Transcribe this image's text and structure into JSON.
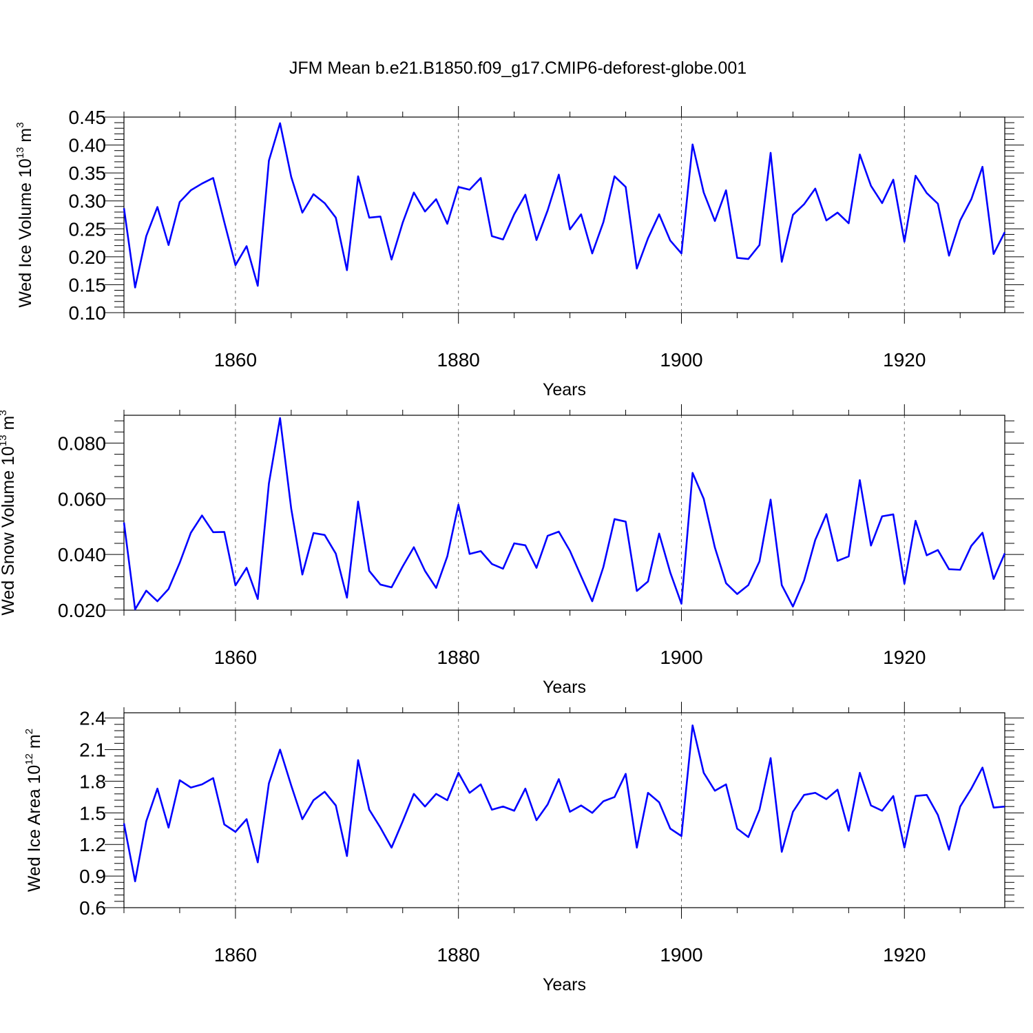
{
  "title": "JFM Mean b.e21.B1850.f09_g17.CMIP6-deforest-globe.001",
  "colors": {
    "line": "#0000ff",
    "axis": "#000000",
    "grid": "#666666"
  },
  "chart_data": [
    {
      "type": "line",
      "ylabel_main": "Wed Ice Volume 10",
      "ylabel_exp": "13",
      "ylabel_unit": " m",
      "ylabel_unit_exp": "3",
      "xlabel": "Years",
      "xlim": [
        1850,
        1929
      ],
      "ylim": [
        0.1,
        0.45
      ],
      "yticks": [
        0.1,
        0.15,
        0.2,
        0.25,
        0.3,
        0.35,
        0.4,
        0.45
      ],
      "ytick_labels": [
        "0.10",
        "0.15",
        "0.20",
        "0.25",
        "0.30",
        "0.35",
        "0.40",
        "0.45"
      ],
      "xticks": [
        1860,
        1880,
        1900,
        1920
      ],
      "xtick_labels": [
        "1860",
        "1880",
        "1900",
        "1920"
      ],
      "series": [
        {
          "name": "Wed Ice Volume",
          "x_start": 1850,
          "values": [
            0.287,
            0.145,
            0.237,
            0.289,
            0.221,
            0.298,
            0.319,
            0.331,
            0.341,
            0.262,
            0.185,
            0.219,
            0.148,
            0.372,
            0.439,
            0.343,
            0.279,
            0.312,
            0.296,
            0.27,
            0.176,
            0.344,
            0.27,
            0.272,
            0.195,
            0.261,
            0.315,
            0.281,
            0.303,
            0.259,
            0.325,
            0.32,
            0.341,
            0.237,
            0.231,
            0.276,
            0.311,
            0.23,
            0.283,
            0.347,
            0.249,
            0.276,
            0.206,
            0.262,
            0.344,
            0.325,
            0.179,
            0.233,
            0.276,
            0.229,
            0.206,
            0.401,
            0.315,
            0.264,
            0.319,
            0.198,
            0.196,
            0.221,
            0.386,
            0.191,
            0.275,
            0.294,
            0.322,
            0.265,
            0.279,
            0.26,
            0.383,
            0.327,
            0.296,
            0.338,
            0.227,
            0.345,
            0.314,
            0.295,
            0.202,
            0.265,
            0.303,
            0.361,
            0.205,
            0.244
          ]
        }
      ]
    },
    {
      "type": "line",
      "ylabel_main": "Wed Snow Volume 10",
      "ylabel_exp": "13",
      "ylabel_unit": " m",
      "ylabel_unit_exp": "3",
      "xlabel": "Years",
      "xlim": [
        1850,
        1929
      ],
      "ylim": [
        0.02,
        0.09
      ],
      "yticks": [
        0.02,
        0.04,
        0.06,
        0.08
      ],
      "ytick_labels": [
        "0.020",
        "0.040",
        "0.060",
        "0.080"
      ],
      "xticks": [
        1860,
        1880,
        1900,
        1920
      ],
      "xtick_labels": [
        "1860",
        "1880",
        "1900",
        "1920"
      ],
      "series": [
        {
          "name": "Wed Snow Volume",
          "x_start": 1850,
          "values": [
            0.0515,
            0.0203,
            0.027,
            0.0232,
            0.0276,
            0.037,
            0.0478,
            0.054,
            0.048,
            0.0481,
            0.0289,
            0.0352,
            0.024,
            0.0655,
            0.089,
            0.0565,
            0.0328,
            0.0477,
            0.047,
            0.0403,
            0.0245,
            0.059,
            0.0341,
            0.0292,
            0.0282,
            0.0357,
            0.0426,
            0.0341,
            0.028,
            0.0393,
            0.0579,
            0.0402,
            0.0412,
            0.0366,
            0.0349,
            0.044,
            0.0433,
            0.0352,
            0.0467,
            0.0482,
            0.0413,
            0.0322,
            0.0232,
            0.0355,
            0.0527,
            0.0518,
            0.0269,
            0.0303,
            0.0475,
            0.0335,
            0.0223,
            0.0693,
            0.06,
            0.0425,
            0.0297,
            0.0258,
            0.029,
            0.0375,
            0.0597,
            0.029,
            0.0213,
            0.0307,
            0.0452,
            0.0545,
            0.0377,
            0.0393,
            0.0667,
            0.0432,
            0.0537,
            0.0544,
            0.0295,
            0.0521,
            0.0397,
            0.0416,
            0.0347,
            0.0345,
            0.0431,
            0.0478,
            0.0312,
            0.0404
          ]
        }
      ]
    },
    {
      "type": "line",
      "ylabel_main": "Wed Ice Area 10",
      "ylabel_exp": "12",
      "ylabel_unit": " m",
      "ylabel_unit_exp": "2",
      "xlabel": "Years",
      "xlim": [
        1850,
        1929
      ],
      "ylim": [
        0.6,
        2.45
      ],
      "yticks": [
        0.6,
        0.9,
        1.2,
        1.5,
        1.8,
        2.1,
        2.4
      ],
      "ytick_labels": [
        "0.6",
        "0.9",
        "1.2",
        "1.5",
        "1.8",
        "2.1",
        "2.4"
      ],
      "xticks": [
        1860,
        1880,
        1900,
        1920
      ],
      "xtick_labels": [
        "1860",
        "1880",
        "1900",
        "1920"
      ],
      "series": [
        {
          "name": "Wed Ice Area",
          "x_start": 1850,
          "values": [
            1.4,
            0.85,
            1.42,
            1.73,
            1.36,
            1.81,
            1.74,
            1.77,
            1.83,
            1.39,
            1.32,
            1.44,
            1.03,
            1.78,
            2.1,
            1.76,
            1.44,
            1.62,
            1.7,
            1.57,
            1.09,
            2.0,
            1.53,
            1.36,
            1.17,
            1.42,
            1.68,
            1.56,
            1.68,
            1.62,
            1.88,
            1.69,
            1.77,
            1.53,
            1.56,
            1.52,
            1.73,
            1.43,
            1.58,
            1.82,
            1.51,
            1.57,
            1.5,
            1.61,
            1.65,
            1.87,
            1.17,
            1.69,
            1.6,
            1.35,
            1.28,
            2.33,
            1.88,
            1.71,
            1.77,
            1.35,
            1.27,
            1.53,
            2.02,
            1.13,
            1.51,
            1.67,
            1.69,
            1.63,
            1.72,
            1.33,
            1.88,
            1.57,
            1.52,
            1.66,
            1.17,
            1.66,
            1.67,
            1.48,
            1.15,
            1.56,
            1.73,
            1.93,
            1.55,
            1.56
          ]
        }
      ]
    }
  ]
}
